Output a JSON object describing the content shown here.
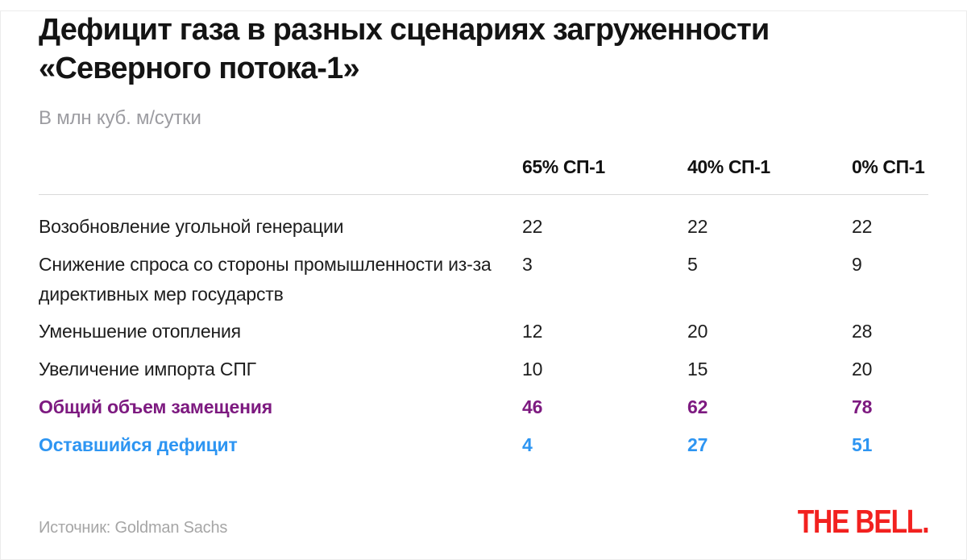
{
  "title": "Дефицит газа в разных сценариях загруженности «Северного потока-1»",
  "subtitle": "В млн куб. м/сутки",
  "source_label": "Источник: Goldman Sachs",
  "logo_text": "THE BELL.",
  "colors": {
    "accent-purple": "#7d1a80",
    "accent-blue": "#2d95f2",
    "logo-red": "#f2211f",
    "rule-gray": "#d9d9d9",
    "text-black": "#141414",
    "muted-gray": "#9c9ca1"
  },
  "chart_data": {
    "type": "table",
    "title": "Дефицит газа в разных сценариях загруженности «Северного потока-1»",
    "unit": "млн куб. м/сутки",
    "columns": [
      "",
      "65% СП-1",
      "40% СП-1",
      "0% СП-1"
    ],
    "rows": [
      {
        "label": "Возобновление угольной генерации",
        "values": [
          22,
          22,
          22
        ],
        "style": "normal"
      },
      {
        "label": "Снижение спроса со стороны промышленности из-за директивных мер государств",
        "values": [
          3,
          5,
          9
        ],
        "style": "normal"
      },
      {
        "label": "Уменьшение отопления",
        "values": [
          12,
          20,
          28
        ],
        "style": "normal"
      },
      {
        "label": "Увеличение импорта СПГ",
        "values": [
          10,
          15,
          20
        ],
        "style": "normal"
      },
      {
        "label": "Общий объем замещения",
        "values": [
          46,
          62,
          78
        ],
        "style": "total"
      },
      {
        "label": "Оставшийся дефицит",
        "values": [
          4,
          27,
          51
        ],
        "style": "deficit"
      }
    ],
    "source": "Goldman Sachs"
  }
}
